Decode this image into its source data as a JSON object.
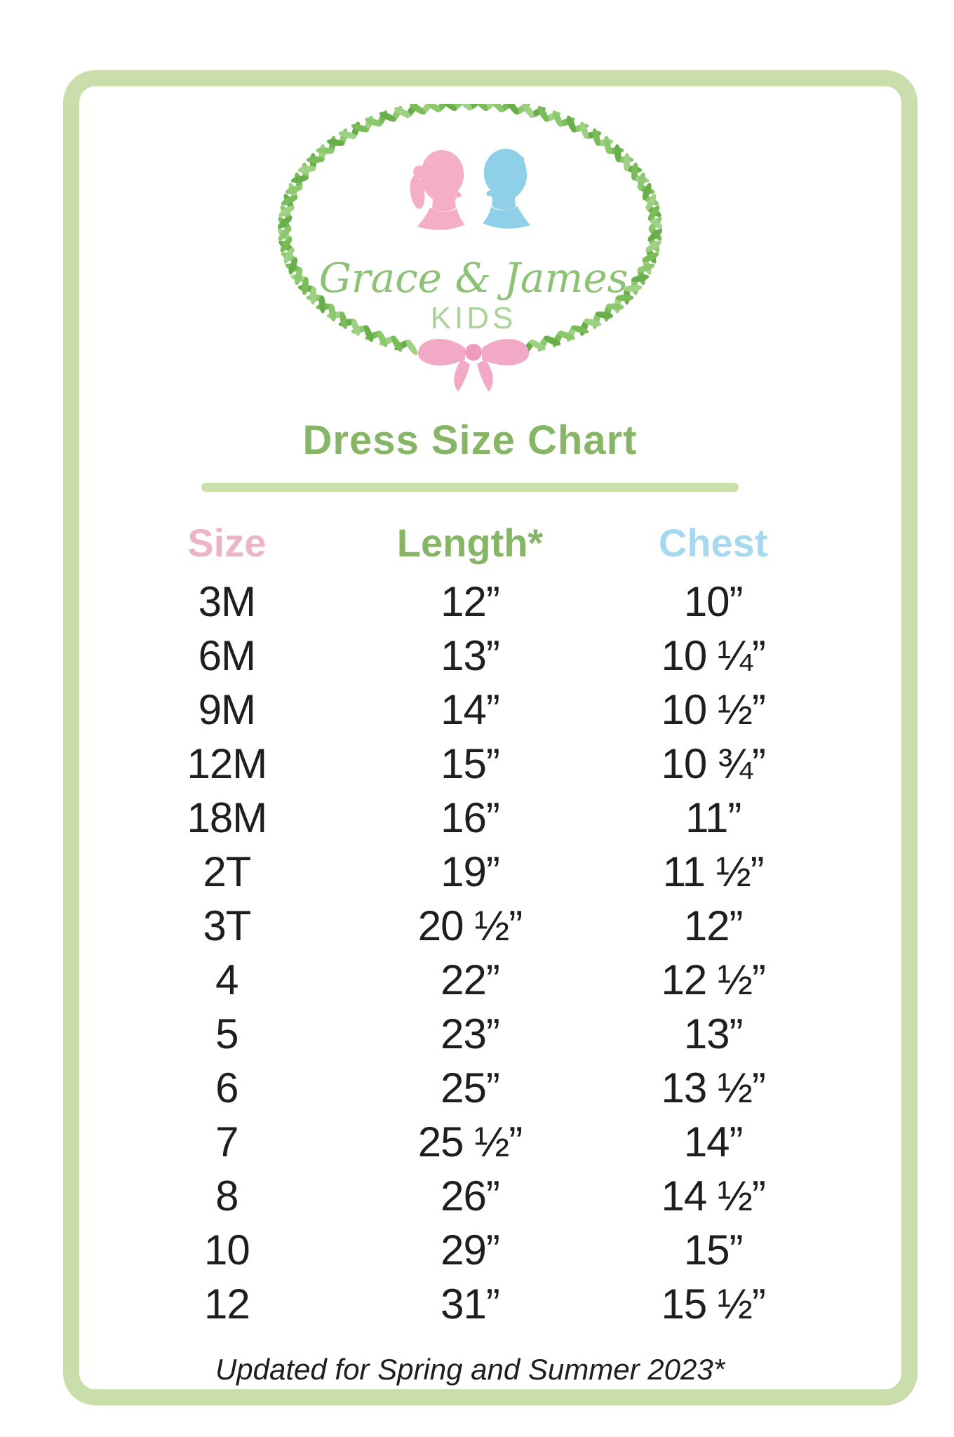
{
  "brand": {
    "script_name": "Grace & James",
    "sub_name": "KIDS"
  },
  "page": {
    "title": "Dress Size Chart"
  },
  "table": {
    "headers": [
      {
        "label": "Size",
        "color": "#edb3c9"
      },
      {
        "label": "Length*",
        "color": "#86b665"
      },
      {
        "label": "Chest",
        "color": "#a5d9ef"
      }
    ],
    "rows": [
      [
        "3M",
        "12”",
        "10”"
      ],
      [
        "6M",
        "13”",
        "10 ¼”"
      ],
      [
        "9M",
        "14”",
        "10 ½”"
      ],
      [
        "12M",
        "15”",
        "10 ¾”"
      ],
      [
        "18M",
        "16”",
        "11”"
      ],
      [
        "2T",
        "19”",
        "11 ½”"
      ],
      [
        "3T",
        "20 ½”",
        "12”"
      ],
      [
        "4",
        "22”",
        "12 ½”"
      ],
      [
        "5",
        "23”",
        "13”"
      ],
      [
        "6",
        "25”",
        "13 ½”"
      ],
      [
        "7",
        "25 ½”",
        "14”"
      ],
      [
        "8",
        "26”",
        "14 ½”"
      ],
      [
        "10",
        "29”",
        "15”"
      ],
      [
        "12",
        "31”",
        "15 ½”"
      ]
    ]
  },
  "footer": {
    "note": "Updated for Spring and Summer 2023*"
  },
  "colors": {
    "border_green": "#cadeac",
    "divider_green": "#c9e0ab",
    "title_green": "#86b665",
    "header_pink": "#edb3c9",
    "header_blue": "#a5d9ef",
    "leaf_green": "#7abc58",
    "script_green": "#8dc276",
    "kids_green": "#aad29a",
    "bow_pink": "#f2a9c6",
    "silhouette_pink": "#f4afc6",
    "silhouette_blue": "#8fd0e8",
    "body_text": "#1e1e20"
  },
  "chart_data": {
    "type": "table",
    "title": "Dress Size Chart",
    "columns": [
      "Size",
      "Length*",
      "Chest"
    ],
    "rows": [
      [
        "3M",
        "12\"",
        "10\""
      ],
      [
        "6M",
        "13\"",
        "10 1/4\""
      ],
      [
        "9M",
        "14\"",
        "10 1/2\""
      ],
      [
        "12M",
        "15\"",
        "10 3/4\""
      ],
      [
        "18M",
        "16\"",
        "11\""
      ],
      [
        "2T",
        "19\"",
        "11 1/2\""
      ],
      [
        "3T",
        "20 1/2\"",
        "12\""
      ],
      [
        "4",
        "22\"",
        "12 1/2\""
      ],
      [
        "5",
        "23\"",
        "13\""
      ],
      [
        "6",
        "25\"",
        "13 1/2\""
      ],
      [
        "7",
        "25 1/2\"",
        "14\""
      ],
      [
        "8",
        "26\"",
        "14 1/2\""
      ],
      [
        "10",
        "29\"",
        "15\""
      ],
      [
        "12",
        "31\"",
        "15 1/2\""
      ]
    ],
    "note": "Updated for Spring and Summer 2023*"
  }
}
